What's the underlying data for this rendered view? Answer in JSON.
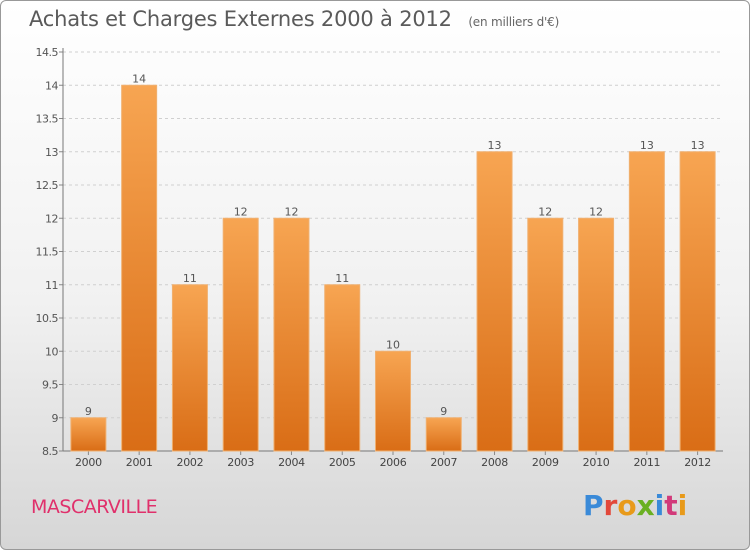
{
  "header": {
    "title": "Achats et Charges Externes 2000 à 2012",
    "subtitle": "(en milliers d'€)"
  },
  "footer": {
    "town": "MASCARVILLE",
    "brand": "Proxiti",
    "brand_colors": [
      "#3a8ad8",
      "#e2483a",
      "#e89a1a",
      "#6ab022",
      "#3a8ad8",
      "#d23a7a",
      "#e89a1a"
    ]
  },
  "chart_data": {
    "type": "bar",
    "title": "Achats et Charges Externes 2000 à 2012",
    "subtitle": "(en milliers d'€)",
    "categories": [
      "2000",
      "2001",
      "2002",
      "2003",
      "2004",
      "2005",
      "2006",
      "2007",
      "2008",
      "2009",
      "2010",
      "2011",
      "2012"
    ],
    "values": [
      9,
      14,
      11,
      12,
      12,
      11,
      10,
      9,
      13,
      12,
      12,
      13,
      13
    ],
    "value_labels": [
      "9",
      "14",
      "11",
      "12",
      "12",
      "11",
      "10",
      "9",
      "13",
      "12",
      "12",
      "13",
      "13"
    ],
    "ylim": [
      8.5,
      14.5
    ],
    "yticks": [
      8.5,
      9,
      9.5,
      10,
      10.5,
      11,
      11.5,
      12,
      12.5,
      13,
      13.5,
      14,
      14.5
    ],
    "ytick_labels": [
      "8.5",
      "9",
      "9.5",
      "10",
      "10.5",
      "11",
      "11.5",
      "12",
      "12.5",
      "13",
      "13.5",
      "14",
      "14.5"
    ],
    "grid": "horizontal-dashed",
    "bar_color_top": "#f7a552",
    "bar_color_bottom": "#d96d16",
    "xlabel": "",
    "ylabel": ""
  }
}
